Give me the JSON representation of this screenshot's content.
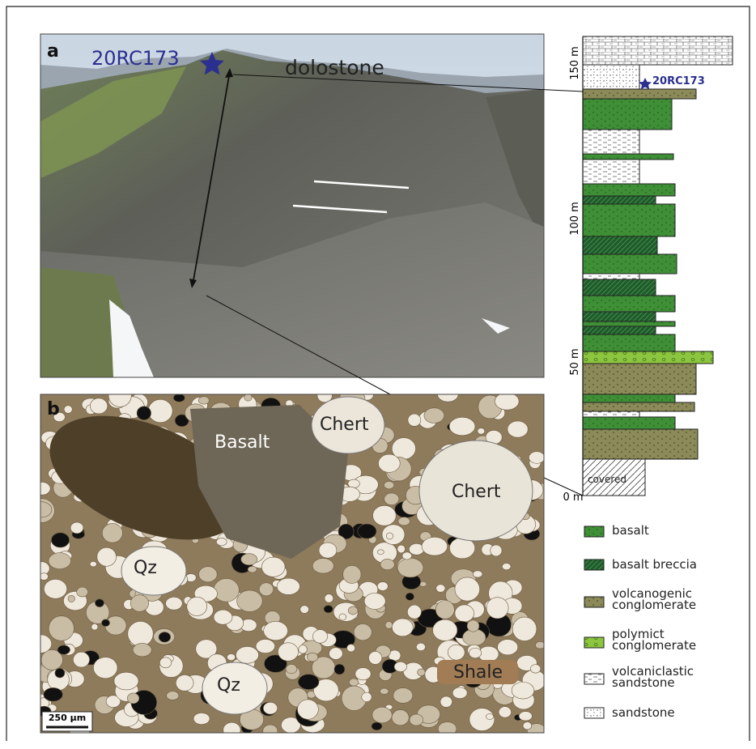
{
  "panel_a": {
    "label": "a",
    "sample": "20RC173",
    "unit": "dolostone"
  },
  "panel_b": {
    "label": "b",
    "clasts": [
      "Basalt",
      "Chert",
      "Chert",
      "Qz",
      "Qz",
      "Shale"
    ],
    "scale_bar": "250 µm"
  },
  "column": {
    "sample": "20RC173",
    "axis": [
      "0 m",
      "50 m",
      "100 m",
      "150 m"
    ],
    "covered": "covered"
  },
  "legend": [
    "basalt",
    "basalt breccia",
    "volcanogenic conglomerate",
    "polymict conglomerate",
    "volcaniclastic sandstone",
    "sandstone"
  ]
}
